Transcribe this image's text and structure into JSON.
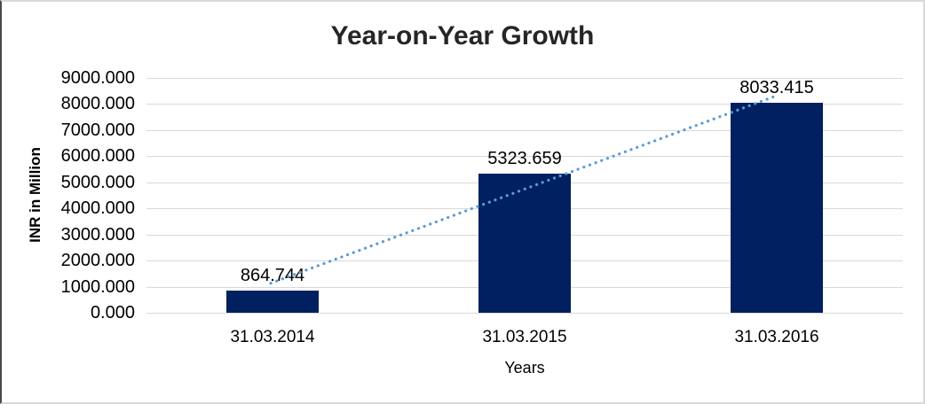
{
  "chart_data": {
    "type": "bar",
    "title": "Year-on-Year Growth",
    "xlabel": "Years",
    "ylabel": "INR in Million",
    "categories": [
      "31.03.2014",
      "31.03.2015",
      "31.03.2016"
    ],
    "values": [
      864.744,
      5323.659,
      8033.415
    ],
    "value_labels": [
      "864.744",
      "5323.659",
      "8033.415"
    ],
    "ylim": [
      0,
      9000
    ],
    "ytick_step": 1000,
    "ytick_labels": [
      "0.000",
      "1000.000",
      "2000.000",
      "3000.000",
      "4000.000",
      "5000.000",
      "6000.000",
      "7000.000",
      "8000.000",
      "9000.000"
    ],
    "grid": "horizontal",
    "legend": "none",
    "trendline": {
      "type": "linear",
      "style": "dotted"
    },
    "colors": {
      "bar": "#002060",
      "trendline": "#5b9bd5",
      "gridline": "#d9d9d9",
      "tick_text": "#000000",
      "title_text": "#262626"
    }
  }
}
